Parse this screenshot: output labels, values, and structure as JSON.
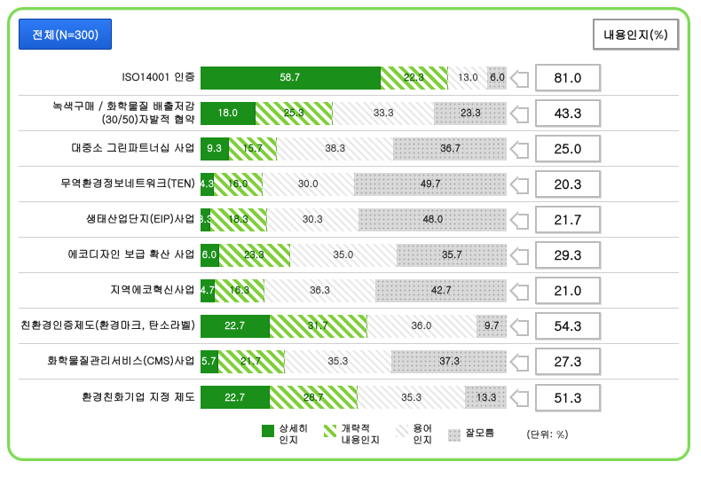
{
  "header_left": "전체(N=300)",
  "header_right": "내용인지(%)",
  "legend": {
    "a": "상세히\n인지",
    "b": "개략적\n내용인지",
    "c": "용어\n인지",
    "d": "잘모름"
  },
  "unit": "(단위: %)",
  "colors": {
    "a": "#1a8f1a",
    "b_pattern": "#7fcf3a",
    "c_pattern": "#d8d8d8",
    "d_pattern": "#a9a9a9",
    "border_green": "#7ED957",
    "badge_blue": "#1b5fd6"
  },
  "chart": {
    "type": "stacked-bar-horizontal",
    "x_max": 100,
    "rows": [
      {
        "label": "ISO14001 인증",
        "a": 58.7,
        "b": 22.3,
        "c": 13.0,
        "d": 6.0,
        "value": "81.0"
      },
      {
        "label": "녹색구매 / 화학물질 배출저감\n(30/50)자발적 협약",
        "a": 18.0,
        "b": 25.3,
        "c": 33.3,
        "d": 23.3,
        "value": "43.3"
      },
      {
        "label": "대중소 그린파트너십 사업",
        "a": 9.3,
        "b": 15.7,
        "c": 38.3,
        "d": 36.7,
        "value": "25.0"
      },
      {
        "label": "무역환경정보네트워크(TEN)",
        "a": 4.3,
        "b": 16.0,
        "c": 30.0,
        "d": 49.7,
        "value": "20.3"
      },
      {
        "label": "생태산업단지(EIP)사업",
        "a": 3.3,
        "b": 18.3,
        "c": 30.3,
        "d": 48.0,
        "value": "21.7"
      },
      {
        "label": "에코디자인 보급 확산 사업",
        "a": 6.0,
        "b": 23.3,
        "c": 35.0,
        "d": 35.7,
        "value": "29.3"
      },
      {
        "label": "지역에코혁신사업",
        "a": 4.7,
        "b": 16.3,
        "c": 36.3,
        "d": 42.7,
        "value": "21.0"
      },
      {
        "label": "친환경인증제도(환경마크, 탄소라벨)",
        "a": 22.7,
        "b": 31.7,
        "c": 36.0,
        "d": 9.7,
        "value": "54.3"
      },
      {
        "label": "화학물질관리서비스(CMS)사업",
        "a": 5.7,
        "b": 21.7,
        "c": 35.3,
        "d": 37.3,
        "value": "27.3"
      },
      {
        "label": "환경친화기업 지정 제도",
        "a": 22.7,
        "b": 28.7,
        "c": 35.3,
        "d": 13.3,
        "value": "51.3"
      }
    ]
  }
}
